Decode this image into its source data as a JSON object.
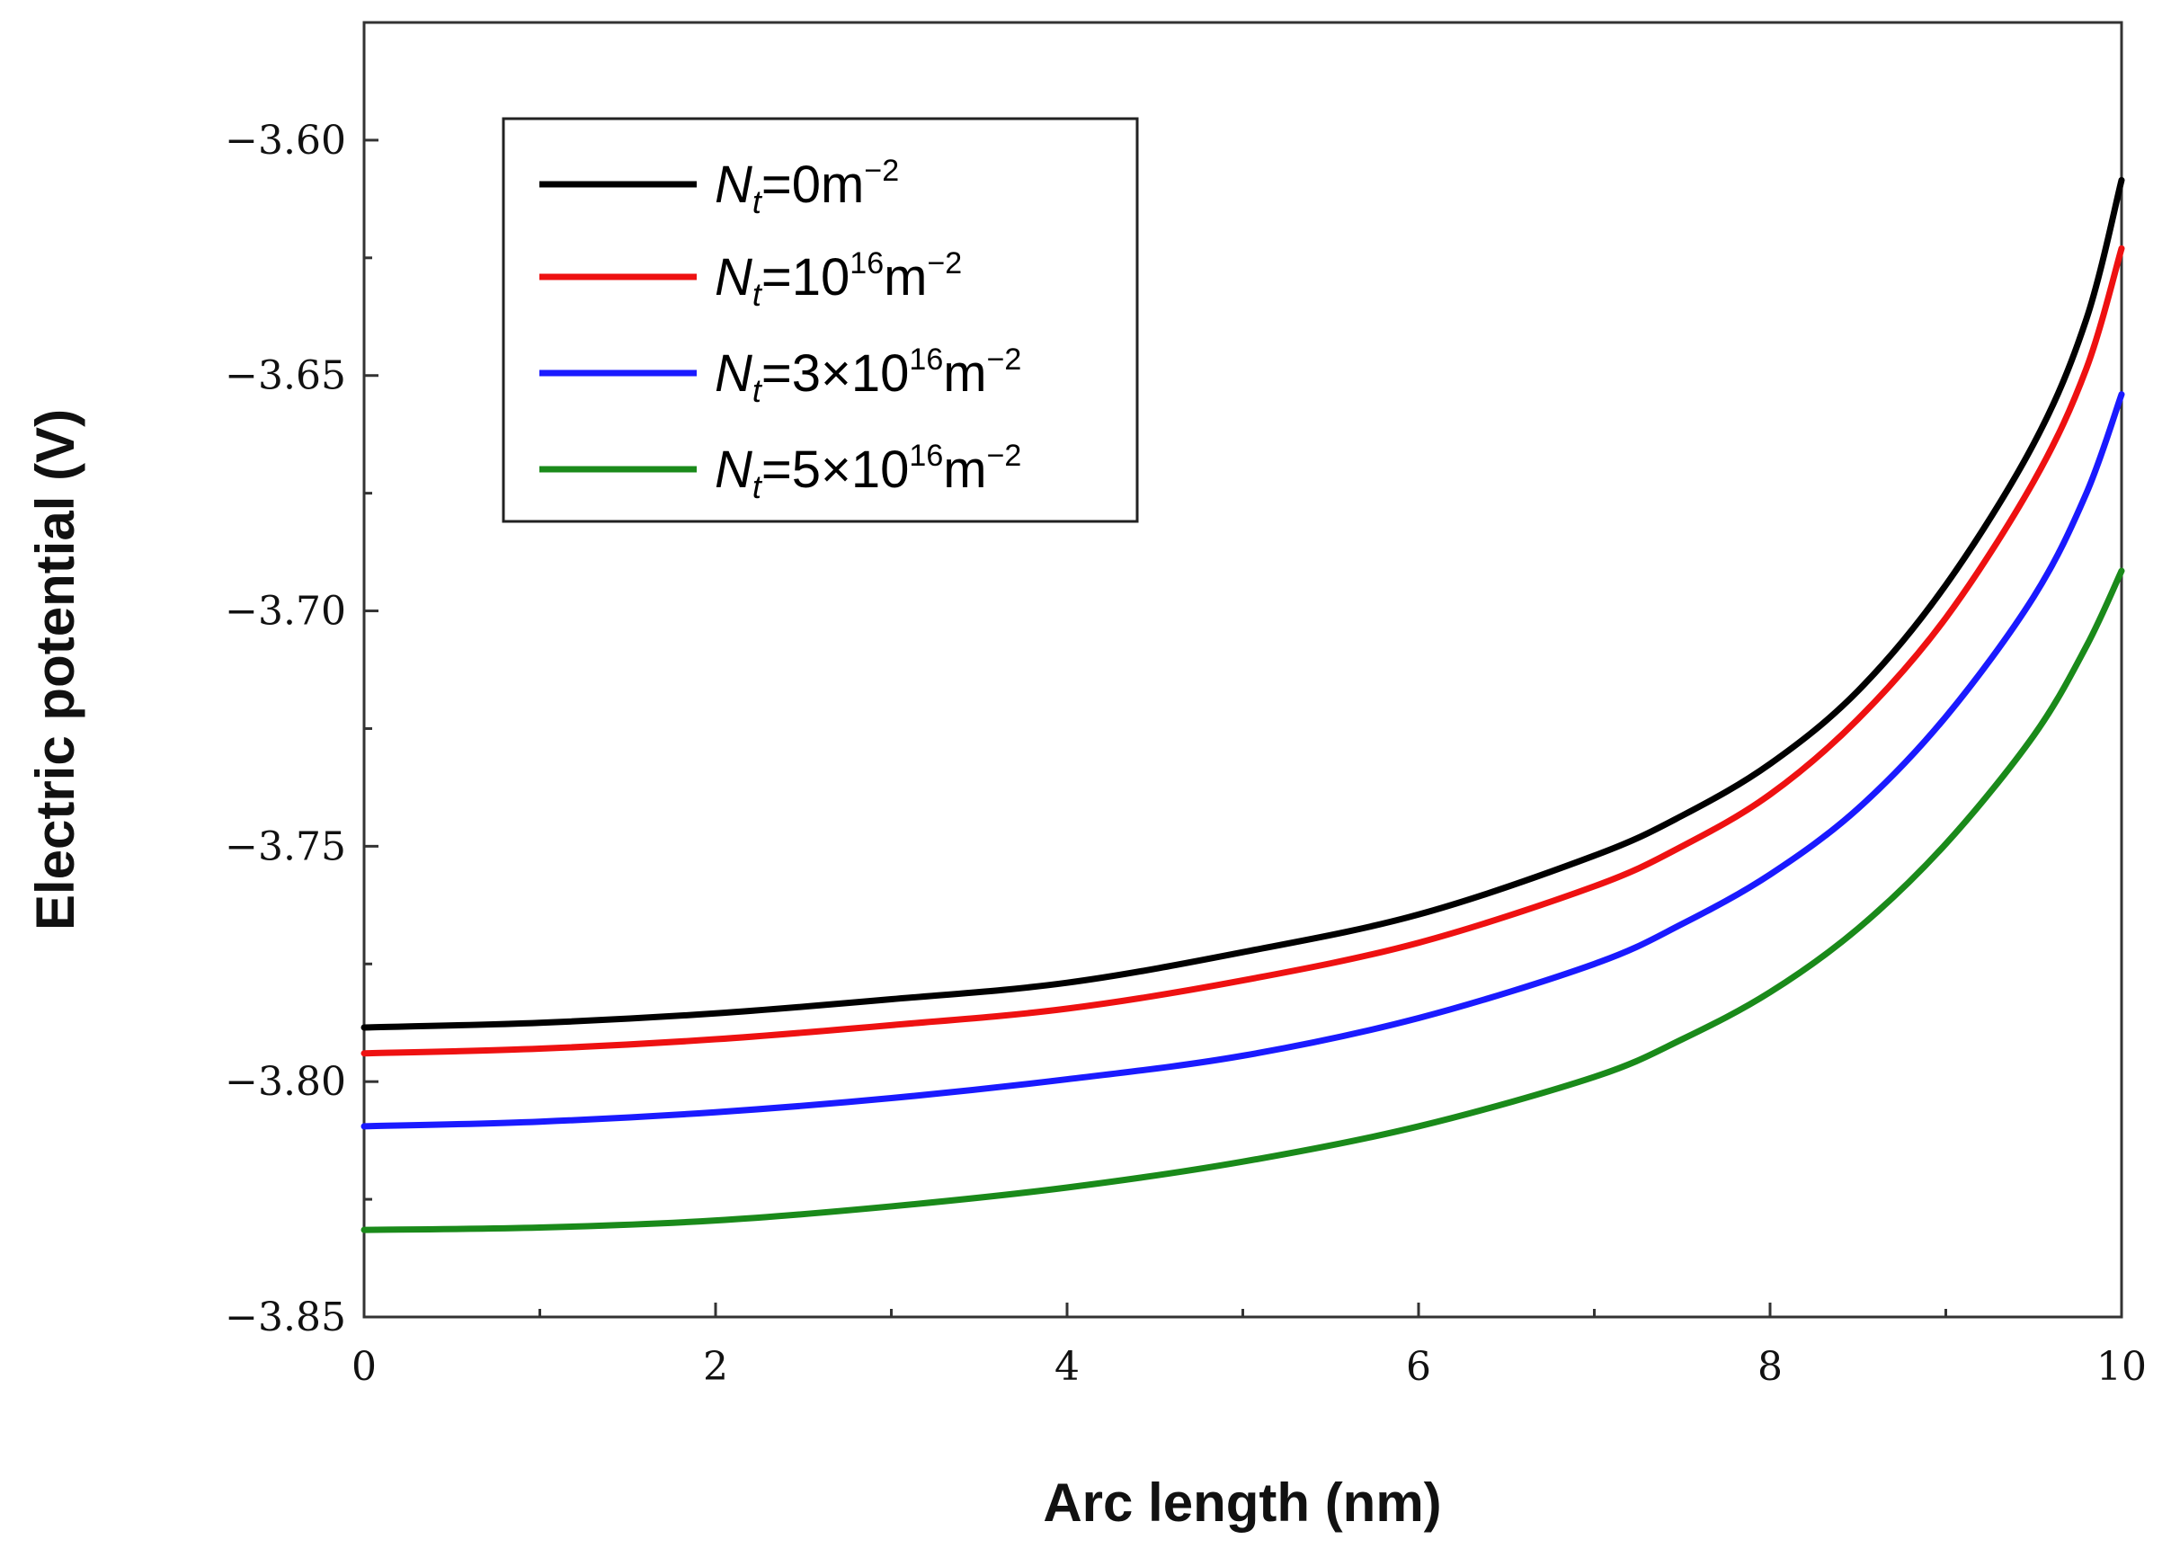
{
  "chart_data": {
    "type": "line",
    "title": "",
    "xlabel": "Arc length (nm)",
    "ylabel": "Electric potential (V)",
    "xlim": [
      0,
      10
    ],
    "ylim": [
      -3.85,
      -3.575
    ],
    "x_ticks": [
      0,
      2,
      4,
      6,
      8,
      10
    ],
    "x_tick_labels": [
      "0",
      "2",
      "4",
      "6",
      "8",
      "10"
    ],
    "y_ticks": [
      -3.85,
      -3.8,
      -3.75,
      -3.7,
      -3.65,
      -3.6
    ],
    "y_tick_labels": [
      "−3.85",
      "−3.80",
      "−3.75",
      "−3.70",
      "−3.65",
      "−3.60"
    ],
    "grid": false,
    "legend_position": "top-left",
    "x": [
      0,
      1,
      2,
      3,
      4,
      5,
      6,
      7,
      7.5,
      8,
      8.5,
      9,
      9.5,
      9.8,
      10
    ],
    "series": [
      {
        "name": "Nt=0m−2",
        "label": {
          "prefix": "N",
          "sub": "t",
          "mid": "=0m",
          "sup": "−2"
        },
        "color": "#000000",
        "values": [
          -3.7885,
          -3.7875,
          -3.7855,
          -3.7825,
          -3.779,
          -3.7725,
          -3.7645,
          -3.752,
          -3.7435,
          -3.7325,
          -3.717,
          -3.6945,
          -3.6645,
          -3.638,
          -3.6085
        ]
      },
      {
        "name": "Nt=10^16m−2",
        "label": {
          "prefix": "N",
          "sub": "t",
          "mid": "=10",
          "sup1": "16",
          "mid2": "m",
          "sup": "−2"
        },
        "color": "#ee1111",
        "values": [
          -3.794,
          -3.793,
          -3.791,
          -3.788,
          -3.7845,
          -3.7785,
          -3.7705,
          -3.7585,
          -3.75,
          -3.739,
          -3.723,
          -3.7015,
          -3.6725,
          -3.6485,
          -3.623
        ]
      },
      {
        "name": "Nt=3×10^16m−2",
        "label": {
          "prefix": "N",
          "sub": "t",
          "mid": "=3×10",
          "sup1": "16",
          "mid2": "m",
          "sup": "−2"
        },
        "color": "#1a1aff",
        "values": [
          -3.8095,
          -3.8085,
          -3.8065,
          -3.8035,
          -3.7995,
          -3.7945,
          -3.7865,
          -3.775,
          -3.7665,
          -3.756,
          -3.742,
          -3.7225,
          -3.697,
          -3.675,
          -3.654
        ]
      },
      {
        "name": "Nt=5×10^16m−2",
        "label": {
          "prefix": "N",
          "sub": "t",
          "mid": "=5×10",
          "sup1": "16",
          "mid2": "m",
          "sup": "−2"
        },
        "color": "#1a8a1a",
        "values": [
          -3.8315,
          -3.831,
          -3.8295,
          -3.8265,
          -3.8225,
          -3.817,
          -3.8095,
          -3.799,
          -3.791,
          -3.781,
          -3.7675,
          -3.7495,
          -3.7265,
          -3.7075,
          -3.6915
        ]
      }
    ]
  }
}
